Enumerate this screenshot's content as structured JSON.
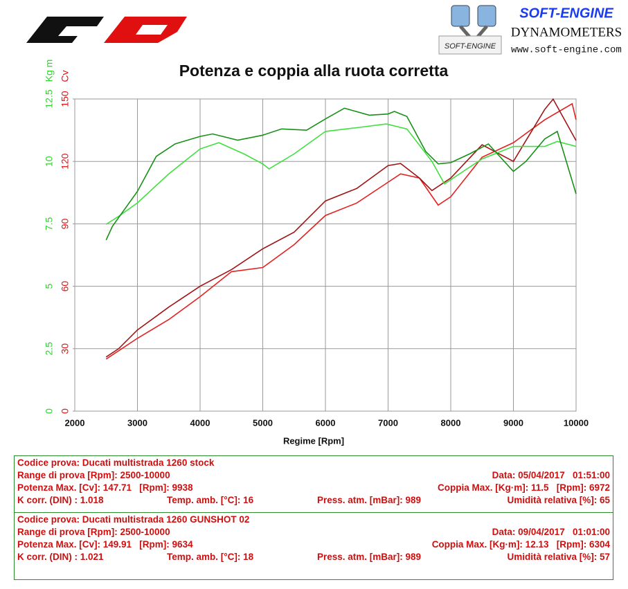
{
  "header": {
    "brand": "SOFT-ENGINE",
    "subtitle": "DYNAMOMETERS",
    "website": "www.soft-engine.com",
    "badge": "SOFT-ENGINE"
  },
  "chart_data": {
    "type": "line",
    "title": "Potenza e coppia alla ruota corretta",
    "x_label": "Regime [Rpm]",
    "y_label": "Cv",
    "y2_label": "Kg m",
    "xlim": [
      2000,
      10000
    ],
    "xticks": [
      2000,
      3000,
      4000,
      5000,
      6000,
      7000,
      8000,
      9000,
      10000
    ],
    "ylim": [
      0,
      150
    ],
    "yticks": [
      0,
      30,
      60,
      90,
      120,
      150
    ],
    "y_color": "#e01010",
    "y2lim": [
      0,
      12.5
    ],
    "y2ticks": [
      0,
      2.5,
      5,
      7.5,
      10,
      12.5
    ],
    "y2_color": "#30d030",
    "grid": true,
    "series": [
      {
        "color": "#e42020",
        "x": [
          2500,
          2700,
          3000,
          3500,
          4000,
          4500,
          5000,
          5500,
          6000,
          6500,
          7000,
          7200,
          7500,
          7800,
          8000,
          8500,
          9000,
          9500,
          9938,
          10000
        ],
        "values": [
          25,
          29,
          35,
          44,
          55,
          67,
          69,
          80,
          94,
          100,
          110,
          114,
          112,
          99,
          103,
          122,
          129,
          140,
          147.71,
          140
        ]
      },
      {
        "color": "#a01414",
        "x": [
          2500,
          2700,
          3000,
          3500,
          4000,
          4500,
          5000,
          5500,
          6000,
          6500,
          7000,
          7200,
          7500,
          7700,
          8000,
          8500,
          9000,
          9500,
          9634,
          10000
        ],
        "values": [
          26,
          30,
          39,
          50,
          60,
          68,
          78,
          86,
          101,
          107,
          118,
          119,
          112,
          106,
          112,
          128,
          120,
          145,
          149.91,
          130
        ]
      },
      {
        "color": "#3ee03e",
        "axis": "y2",
        "x": [
          2500,
          2700,
          3000,
          3500,
          4000,
          4300,
          4700,
          5000,
          5100,
          5500,
          6000,
          6500,
          6972,
          7300,
          7700,
          7900,
          8200,
          8500,
          9000,
          9500,
          9700,
          10000
        ],
        "values": [
          7.48,
          7.8,
          8.34,
          9.5,
          10.5,
          10.75,
          10.3,
          9.9,
          9.7,
          10.3,
          11.2,
          11.35,
          11.5,
          11.3,
          10.0,
          9.1,
          9.6,
          10.1,
          10.6,
          10.6,
          10.8,
          10.6
        ]
      },
      {
        "color": "#169016",
        "axis": "y2",
        "x": [
          2500,
          2600,
          3000,
          3300,
          3600,
          4000,
          4200,
          4600,
          5000,
          5300,
          5700,
          6000,
          6304,
          6700,
          7000,
          7100,
          7300,
          7600,
          7800,
          8000,
          8300,
          8600,
          9000,
          9200,
          9500,
          9700,
          10000
        ],
        "values": [
          6.85,
          7.4,
          8.8,
          10.2,
          10.7,
          11.0,
          11.1,
          10.85,
          11.05,
          11.3,
          11.25,
          11.7,
          12.13,
          11.85,
          11.9,
          12.0,
          11.8,
          10.4,
          9.9,
          9.95,
          10.3,
          10.7,
          9.6,
          10.0,
          10.9,
          11.2,
          8.7
        ]
      }
    ]
  },
  "tests": [
    {
      "rows": [
        [
          "Codice prova: Ducati multistrada 1260 stock"
        ],
        [
          "Range di prova [Rpm]: 2500-10000",
          "Data: 05/04/2017   01:51:00"
        ],
        [
          "Potenza Max. [Cv]: 147.71   [Rpm]: 9938",
          "Coppia Max. [Kg·m]: 11.5   [Rpm]: 6972"
        ],
        [
          "K corr. (DIN) : 1.018",
          "Temp. amb. [°C]: 16",
          "Press. atm. [mBar]: 989",
          "Umidità relativa [%]: 65"
        ]
      ]
    },
    {
      "rows": [
        [
          "Codice prova: Ducati multistrada 1260 GUNSHOT 02"
        ],
        [
          "Range di prova [Rpm]: 2500-10000",
          "Data: 09/04/2017   01:01:00"
        ],
        [
          "Potenza Max. [Cv]: 149.91   [Rpm]: 9634",
          "Coppia Max. [Kg·m]: 12.13   [Rpm]: 6304"
        ],
        [
          "K corr. (DIN) : 1.021",
          "Temp. amb. [°C]: 18",
          "Press. atm. [mBar]: 989",
          "Umidità relativa [%]: 57"
        ]
      ]
    }
  ]
}
